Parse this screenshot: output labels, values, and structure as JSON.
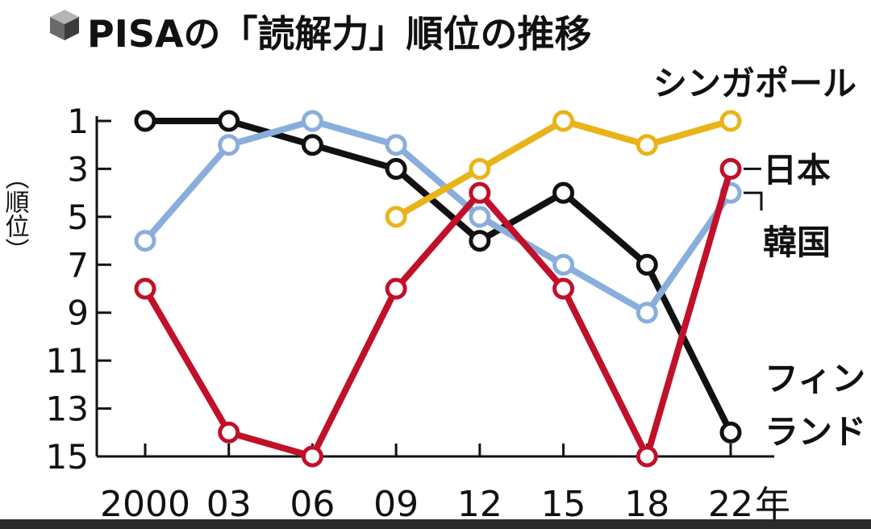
{
  "chart_data": {
    "type": "line",
    "title": "PISAの「読解力」順位の推移",
    "ylabel": "（順位）",
    "x_unit": "年",
    "categories": [
      "2000",
      "03",
      "06",
      "09",
      "12",
      "15",
      "18",
      "22"
    ],
    "yticks": [
      1,
      3,
      5,
      7,
      9,
      11,
      13,
      15
    ],
    "ylim": [
      1,
      15
    ],
    "y_inverted": true,
    "grid": false,
    "series": [
      {
        "name": "フィンランド",
        "color": "#111111",
        "values": [
          1,
          1,
          2,
          3,
          6,
          4,
          7,
          14
        ]
      },
      {
        "name": "韓国",
        "color": "#8aaedc",
        "values": [
          6,
          2,
          1,
          2,
          5,
          7,
          9,
          4
        ]
      },
      {
        "name": "シンガポール",
        "color": "#e8b419",
        "values": [
          null,
          null,
          null,
          5,
          3,
          1,
          2,
          1
        ]
      },
      {
        "name": "日本",
        "color": "#c0102a",
        "values": [
          8,
          14,
          15,
          8,
          4,
          8,
          15,
          3
        ]
      }
    ]
  }
}
